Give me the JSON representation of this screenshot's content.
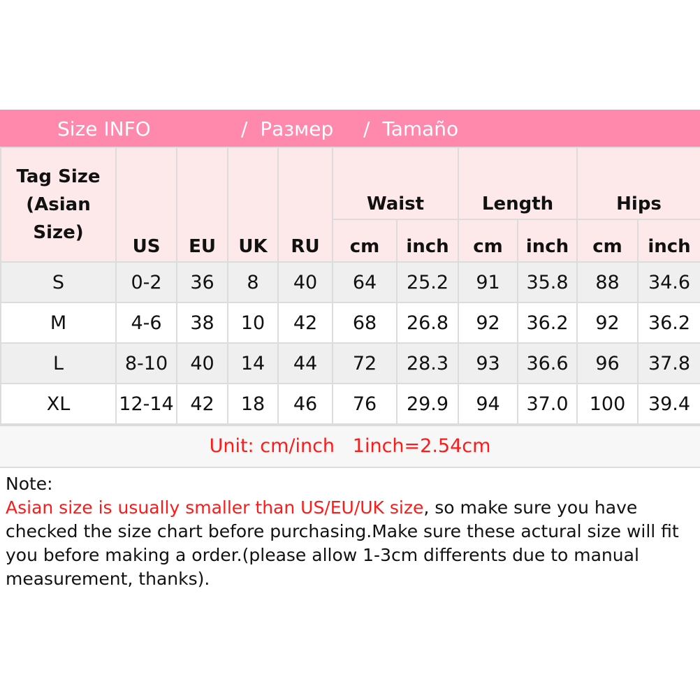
{
  "title": {
    "part1": "Size INFO",
    "part2": "/  Размер",
    "part3": "/  Tamaño"
  },
  "headers": {
    "tag": "Tag Size (Asian Size)",
    "us": "US",
    "eu": "EU",
    "uk": "UK",
    "ru": "RU",
    "waist": "Waist",
    "length": "Length",
    "hips": "Hips",
    "cm": "cm",
    "inch": "inch"
  },
  "rows": [
    [
      "S",
      "0-2",
      "36",
      "8",
      "40",
      "64",
      "25.2",
      "91",
      "35.8",
      "88",
      "34.6"
    ],
    [
      "M",
      "4-6",
      "38",
      "10",
      "42",
      "68",
      "26.8",
      "92",
      "36.2",
      "92",
      "36.2"
    ],
    [
      "L",
      "8-10",
      "40",
      "14",
      "44",
      "72",
      "28.3",
      "93",
      "36.6",
      "96",
      "37.8"
    ],
    [
      "XL",
      "12-14",
      "42",
      "18",
      "46",
      "76",
      "29.9",
      "94",
      "37.0",
      "100",
      "39.4"
    ]
  ],
  "unit": "Unit: cm/inch   1inch=2.54cm",
  "note": {
    "label": "Note:",
    "highlight": "Asian size is usually smaller than US/EU/UK size",
    "text": ", so make sure you have checked the size chart before purchasing.Make sure these actural size will fit you before making a order.(please allow 1-3cm differents due to manual measurement, thanks)."
  },
  "colors": {
    "title_bg": "#ff88ad",
    "header_bg": "#fde9e9",
    "stripe": "#efefef",
    "accent_red": "#ff1a1a"
  }
}
